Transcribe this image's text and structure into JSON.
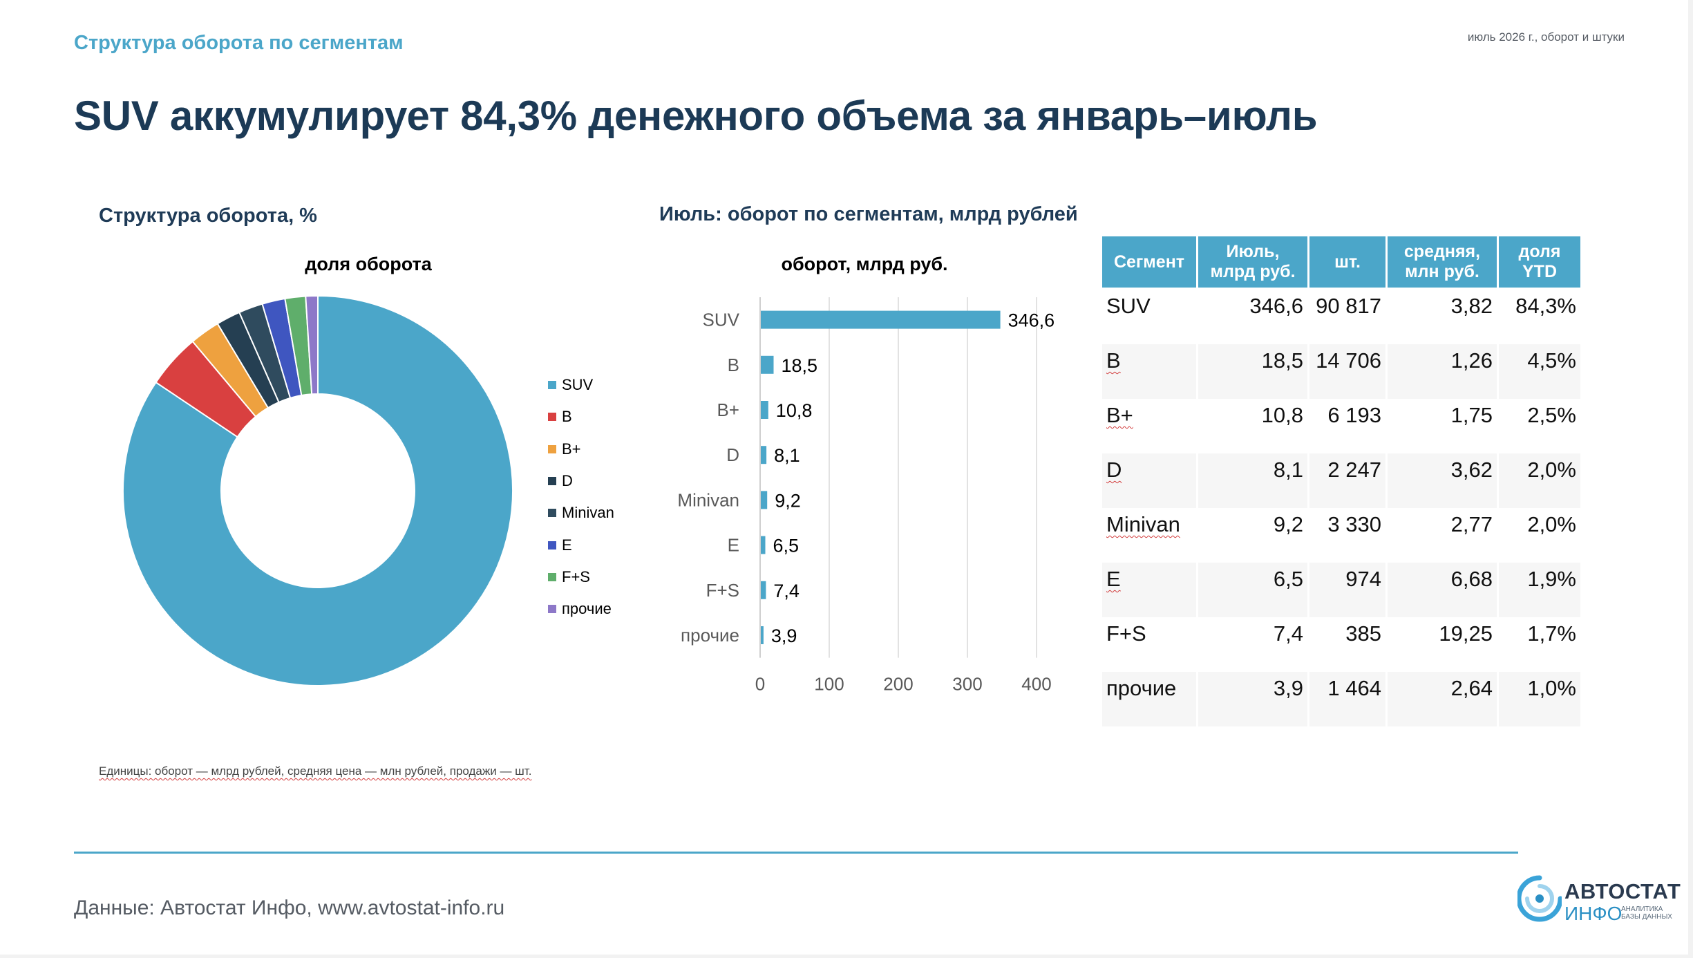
{
  "header": {
    "kicker": "Структура оборота по сегментам",
    "date_note": "июль 2026 г., оборот и штуки",
    "headline": "SUV аккумулирует 84,3% денежного объема за январь–июль"
  },
  "left_section": {
    "title": "Структура оборота, %",
    "chart_title": "доля оборота"
  },
  "middle_section": {
    "title": "Июль: оборот по сегментам, млрд рублей",
    "chart_title": "оборот, млрд руб."
  },
  "table": {
    "headers": [
      "Сегмент",
      "Июль, млрд руб.",
      "шт.",
      "средняя, млн руб.",
      "доля YTD"
    ],
    "rows": [
      {
        "segment": "SUV",
        "july": "346,6",
        "units": "90 817",
        "avg": "3,82",
        "share": "84,3%"
      },
      {
        "segment": "B",
        "july": "18,5",
        "units": "14 706",
        "avg": "1,26",
        "share": "4,5%"
      },
      {
        "segment": "B+",
        "july": "10,8",
        "units": "6 193",
        "avg": "1,75",
        "share": "2,5%"
      },
      {
        "segment": "D",
        "july": "8,1",
        "units": "2 247",
        "avg": "3,62",
        "share": "2,0%"
      },
      {
        "segment": "Minivan",
        "july": "9,2",
        "units": "3 330",
        "avg": "2,77",
        "share": "2,0%"
      },
      {
        "segment": "E",
        "july": "6,5",
        "units": "974",
        "avg": "6,68",
        "share": "1,9%"
      },
      {
        "segment": "F+S",
        "july": "7,4",
        "units": "385",
        "avg": "19,25",
        "share": "1,7%"
      },
      {
        "segment": "прочие",
        "july": "3,9",
        "units": "1 464",
        "avg": "2,64",
        "share": "1,0%"
      }
    ]
  },
  "units_note": "Единицы: оборот — млрд рублей, средняя цена — млн рублей, продажи — шт.",
  "footer": {
    "source": "Данные: Автостат Инфо, www.avtostat-info.ru",
    "logo_top": "АВТОСТАТ",
    "logo_bottom": "ИНФО",
    "logo_sub": "АНАЛИТИКА\nБАЗЫ ДАННЫХ"
  },
  "chart_data": [
    {
      "type": "pie",
      "variant": "donut",
      "title": "доля оборота",
      "categories": [
        "SUV",
        "B",
        "B+",
        "D",
        "Minivan",
        "E",
        "F+S",
        "прочие"
      ],
      "values": [
        84.3,
        4.5,
        2.5,
        2.0,
        2.0,
        1.9,
        1.7,
        1.0
      ],
      "unit": "%",
      "colors": [
        "#4ba6c9",
        "#d94040",
        "#eea13f",
        "#253f52",
        "#2f4b5e",
        "#3f56c0",
        "#5fae6b",
        "#8d78c8"
      ],
      "legend": "right"
    },
    {
      "type": "bar",
      "orientation": "horizontal",
      "title": "оборот, млрд руб.",
      "categories": [
        "SUV",
        "B",
        "B+",
        "D",
        "Minivan",
        "E",
        "F+S",
        "прочие"
      ],
      "values": [
        346.6,
        18.5,
        10.8,
        8.1,
        9.2,
        6.5,
        7.4,
        3.9
      ],
      "data_labels": [
        "346,6",
        "18,5",
        "10,8",
        "8,1",
        "9,2",
        "6,5",
        "7,4",
        "3,9"
      ],
      "xlim": [
        0,
        400
      ],
      "xticks": [
        "0",
        "100",
        "200",
        "300",
        "400"
      ],
      "color": "#4ba6c9",
      "grid": "vertical"
    }
  ]
}
